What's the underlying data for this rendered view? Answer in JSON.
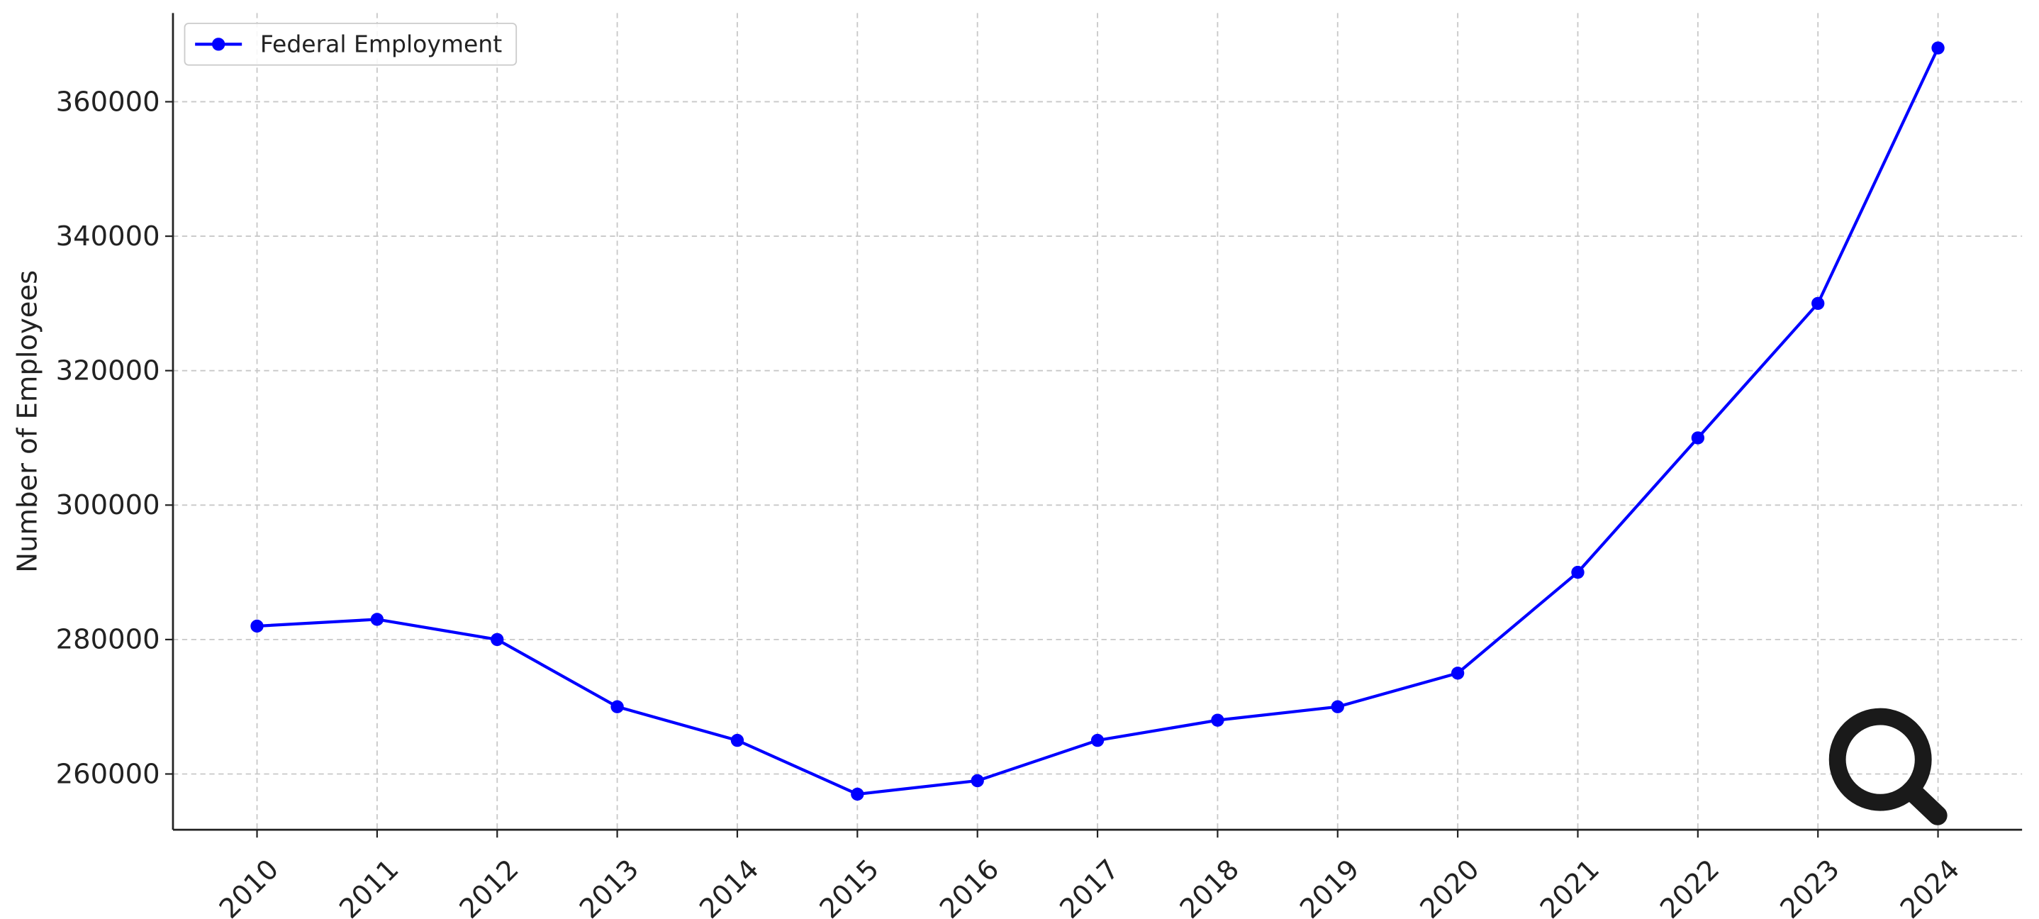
{
  "chart_data": {
    "type": "line",
    "ylabel": "Number of Employees",
    "x": [
      2010,
      2011,
      2012,
      2013,
      2014,
      2015,
      2016,
      2017,
      2018,
      2019,
      2020,
      2021,
      2022,
      2023,
      2024
    ],
    "series": [
      {
        "name": "Federal Employment",
        "color": "#0000ff",
        "values": [
          282000,
          283000,
          280000,
          270000,
          265000,
          257000,
          259000,
          265000,
          268000,
          270000,
          275000,
          290000,
          310000,
          330000,
          368000
        ]
      }
    ],
    "xlim": [
      2009.3,
      2024.7
    ],
    "xticks": [
      2010,
      2011,
      2012,
      2013,
      2014,
      2015,
      2016,
      2017,
      2018,
      2019,
      2020,
      2021,
      2022,
      2023,
      2024
    ],
    "ylim": [
      251700,
      373200
    ],
    "yticks": [
      260000,
      280000,
      300000,
      320000,
      340000,
      360000
    ],
    "grid": true,
    "legend": "upper left"
  }
}
